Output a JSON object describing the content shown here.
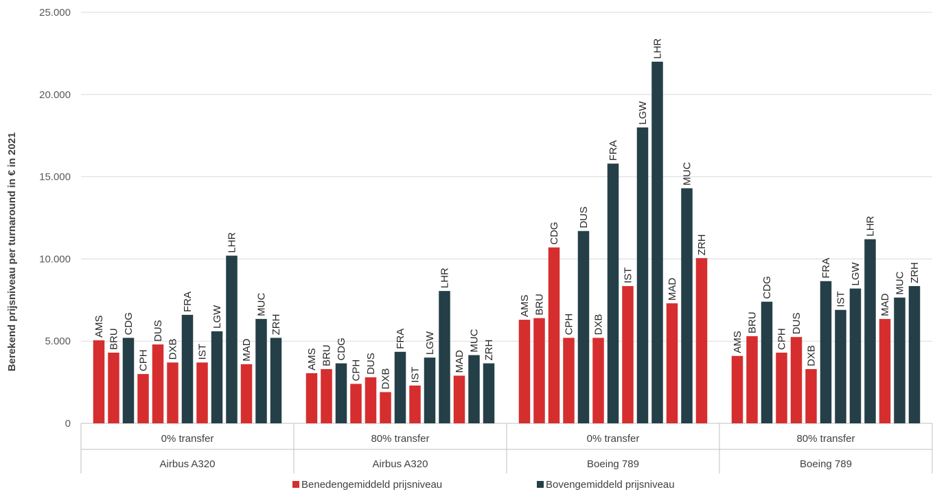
{
  "chart_data": {
    "type": "bar",
    "ylabel": "Berekend prijsniveau per turnaround in € in 2021",
    "xlabel": "",
    "ylim": [
      0,
      25000
    ],
    "yticks": [
      0,
      5000,
      10000,
      15000,
      20000,
      25000
    ],
    "ytick_labels": [
      "0",
      "5.000",
      "10.000",
      "15.000",
      "20.000",
      "25.000"
    ],
    "grid": true,
    "legend_position": "bottom",
    "colors": {
      "below": "#d62e2e",
      "above": "#243f47"
    },
    "series": [
      {
        "name": "Benedengemiddeld prijsniveau",
        "key": "below"
      },
      {
        "name": "Bovengemiddeld prijsniveau",
        "key": "above"
      }
    ],
    "groups": [
      {
        "transfer": "0% transfer",
        "aircraft": "Airbus A320",
        "bars": [
          {
            "label": "AMS",
            "value": 5050,
            "series": "below"
          },
          {
            "label": "BRU",
            "value": 4300,
            "series": "below"
          },
          {
            "label": "CDG",
            "value": 5200,
            "series": "above"
          },
          {
            "label": "CPH",
            "value": 3000,
            "series": "below"
          },
          {
            "label": "DUS",
            "value": 4800,
            "series": "below"
          },
          {
            "label": "DXB",
            "value": 3700,
            "series": "below"
          },
          {
            "label": "FRA",
            "value": 6600,
            "series": "above"
          },
          {
            "label": "IST",
            "value": 3700,
            "series": "below"
          },
          {
            "label": "LGW",
            "value": 5600,
            "series": "above"
          },
          {
            "label": "LHR",
            "value": 10200,
            "series": "above"
          },
          {
            "label": "MAD",
            "value": 3600,
            "series": "below"
          },
          {
            "label": "MUC",
            "value": 6350,
            "series": "above"
          },
          {
            "label": "ZRH",
            "value": 5200,
            "series": "above"
          }
        ]
      },
      {
        "transfer": "80% transfer",
        "aircraft": "Airbus A320",
        "bars": [
          {
            "label": "AMS",
            "value": 3050,
            "series": "below"
          },
          {
            "label": "BRU",
            "value": 3300,
            "series": "below"
          },
          {
            "label": "CDG",
            "value": 3650,
            "series": "above"
          },
          {
            "label": "CPH",
            "value": 2400,
            "series": "below"
          },
          {
            "label": "DUS",
            "value": 2800,
            "series": "below"
          },
          {
            "label": "DXB",
            "value": 1900,
            "series": "below"
          },
          {
            "label": "FRA",
            "value": 4350,
            "series": "above"
          },
          {
            "label": "IST",
            "value": 2300,
            "series": "below"
          },
          {
            "label": "LGW",
            "value": 4000,
            "series": "above"
          },
          {
            "label": "LHR",
            "value": 8050,
            "series": "above"
          },
          {
            "label": "MAD",
            "value": 2900,
            "series": "below"
          },
          {
            "label": "MUC",
            "value": 4150,
            "series": "above"
          },
          {
            "label": "ZRH",
            "value": 3650,
            "series": "above"
          }
        ]
      },
      {
        "transfer": "0% transfer",
        "aircraft": "Boeing 789",
        "bars": [
          {
            "label": "AMS",
            "value": 6300,
            "series": "below"
          },
          {
            "label": "BRU",
            "value": 6400,
            "series": "below"
          },
          {
            "label": "CDG",
            "value": 10700,
            "series": "below"
          },
          {
            "label": "CPH",
            "value": 5200,
            "series": "below"
          },
          {
            "label": "DUS",
            "value": 11700,
            "series": "above"
          },
          {
            "label": "DXB",
            "value": 5200,
            "series": "below"
          },
          {
            "label": "FRA",
            "value": 15800,
            "series": "above"
          },
          {
            "label": "IST",
            "value": 8350,
            "series": "below"
          },
          {
            "label": "LGW",
            "value": 18000,
            "series": "above"
          },
          {
            "label": "LHR",
            "value": 22000,
            "series": "above"
          },
          {
            "label": "MAD",
            "value": 7300,
            "series": "below"
          },
          {
            "label": "MUC",
            "value": 14300,
            "series": "above"
          },
          {
            "label": "ZRH",
            "value": 10050,
            "series": "below"
          }
        ]
      },
      {
        "transfer": "80% transfer",
        "aircraft": "Boeing 789",
        "bars": [
          {
            "label": "AMS",
            "value": 4100,
            "series": "below"
          },
          {
            "label": "BRU",
            "value": 5300,
            "series": "below"
          },
          {
            "label": "CDG",
            "value": 7400,
            "series": "above"
          },
          {
            "label": "CPH",
            "value": 4300,
            "series": "below"
          },
          {
            "label": "DUS",
            "value": 5250,
            "series": "below"
          },
          {
            "label": "DXB",
            "value": 3300,
            "series": "below"
          },
          {
            "label": "FRA",
            "value": 8650,
            "series": "above"
          },
          {
            "label": "IST",
            "value": 6900,
            "series": "above"
          },
          {
            "label": "LGW",
            "value": 8200,
            "series": "above"
          },
          {
            "label": "LHR",
            "value": 11200,
            "series": "above"
          },
          {
            "label": "MAD",
            "value": 6350,
            "series": "below"
          },
          {
            "label": "MUC",
            "value": 7650,
            "series": "above"
          },
          {
            "label": "ZRH",
            "value": 8350,
            "series": "above"
          }
        ]
      }
    ]
  }
}
